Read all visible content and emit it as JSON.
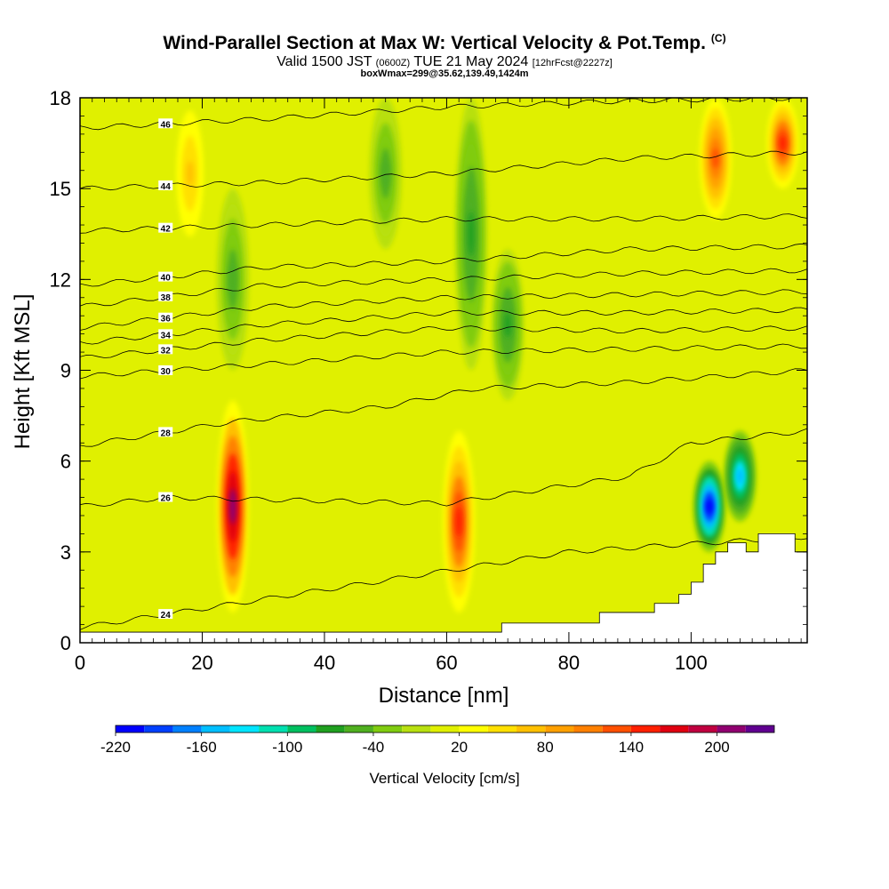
{
  "titles": {
    "main": "Wind-Parallel Section at Max W: Vertical Velocity & Pot.Temp.",
    "main_tag": "(C)",
    "sub_left": "Valid 1500 JST",
    "sub_small1": "(0600Z)",
    "sub_mid": "TUE 21 May 2024",
    "sub_small2": "[12hrFcst@2227z]",
    "info": "boxWmax=299@35.62,139.49,1424m"
  },
  "chart_data": {
    "type": "heatmap",
    "xlabel": "Distance [nm]",
    "ylabel": "Height [Kft MSL]",
    "xlim": [
      0,
      119
    ],
    "ylim": [
      0,
      18
    ],
    "x_ticks": [
      0,
      20,
      40,
      60,
      80,
      100
    ],
    "y_ticks": [
      0,
      3,
      6,
      9,
      12,
      15,
      18
    ],
    "colorbar": {
      "label": "Vertical Velocity [cm/s]",
      "levels": [
        -220,
        -200,
        -180,
        -160,
        -140,
        -120,
        -100,
        -80,
        -60,
        -40,
        -20,
        0,
        20,
        40,
        60,
        80,
        100,
        120,
        140,
        160,
        180,
        200,
        220
      ],
      "tick_labels": [
        "-220",
        "-160",
        "-100",
        "-40",
        "20",
        "80",
        "140",
        "200"
      ],
      "colors": [
        "#0000ff",
        "#0040ff",
        "#0080ff",
        "#00bfff",
        "#00e5ff",
        "#00e0b0",
        "#00c060",
        "#20a020",
        "#50b020",
        "#80cc10",
        "#b8e010",
        "#e0f000",
        "#ffff00",
        "#ffe000",
        "#ffc000",
        "#ffa000",
        "#ff8000",
        "#ff5000",
        "#ff2000",
        "#e00010",
        "#c00040",
        "#900070",
        "#600090"
      ]
    },
    "vertical_velocity_features": [
      {
        "x": 25,
        "y_top": 8,
        "y_bottom": 1,
        "peak": 210,
        "kind": "updraft"
      },
      {
        "x": 62,
        "y_top": 7,
        "y_bottom": 1,
        "peak": 150,
        "kind": "updraft"
      },
      {
        "x": 103,
        "y_top": 6,
        "y_bottom": 3,
        "peak": -220,
        "kind": "downdraft"
      },
      {
        "x": 108,
        "y_top": 7,
        "y_bottom": 4,
        "peak": -150,
        "kind": "downdraft"
      },
      {
        "x": 50,
        "y_top": 18,
        "y_bottom": 13,
        "peak": -60,
        "kind": "downdraft"
      },
      {
        "x": 64,
        "y_top": 18,
        "y_bottom": 9,
        "peak": -70,
        "kind": "downdraft"
      },
      {
        "x": 70,
        "y_top": 13,
        "y_bottom": 8,
        "peak": -70,
        "kind": "downdraft"
      },
      {
        "x": 25,
        "y_top": 15,
        "y_bottom": 9,
        "peak": -50,
        "kind": "downdraft"
      },
      {
        "x": 104,
        "y_top": 18,
        "y_bottom": 14,
        "peak": 120,
        "kind": "updraft"
      },
      {
        "x": 115,
        "y_top": 18,
        "y_bottom": 15,
        "peak": 150,
        "kind": "updraft"
      },
      {
        "x": 18,
        "y_top": 18,
        "y_bottom": 13,
        "peak": 70,
        "kind": "updraft"
      }
    ],
    "theta_contours": [
      {
        "label": "24",
        "levels_y": [
          [
            0,
            0.5
          ],
          [
            80,
            3.0
          ],
          [
            95,
            3.2
          ],
          [
            119,
            3.5
          ]
        ]
      },
      {
        "label": "26",
        "levels_y": [
          [
            0,
            4.5
          ],
          [
            14,
            4.8
          ],
          [
            60,
            4.6
          ],
          [
            90,
            5.5
          ],
          [
            100,
            6.6
          ],
          [
            119,
            7.0
          ]
        ]
      },
      {
        "label": "28",
        "levels_y": [
          [
            0,
            6.5
          ],
          [
            25,
            7.3
          ],
          [
            50,
            7.8
          ],
          [
            65,
            8.4
          ],
          [
            90,
            8.6
          ],
          [
            119,
            9.0
          ]
        ]
      },
      {
        "label": "30",
        "levels_y": [
          [
            0,
            8.8
          ],
          [
            30,
            9.2
          ],
          [
            60,
            9.6
          ],
          [
            90,
            9.7
          ],
          [
            119,
            9.8
          ]
        ]
      },
      {
        "label": "32",
        "levels_y": [
          [
            0,
            9.4
          ],
          [
            30,
            10.0
          ],
          [
            60,
            10.4
          ],
          [
            90,
            10.3
          ],
          [
            119,
            10.4
          ]
        ]
      },
      {
        "label": "34",
        "levels_y": [
          [
            0,
            9.9
          ],
          [
            30,
            10.5
          ],
          [
            60,
            10.9
          ],
          [
            90,
            10.9
          ],
          [
            119,
            11.0
          ]
        ]
      },
      {
        "label": "36",
        "levels_y": [
          [
            0,
            10.4
          ],
          [
            30,
            11.1
          ],
          [
            60,
            11.4
          ],
          [
            90,
            11.5
          ],
          [
            119,
            11.6
          ]
        ]
      },
      {
        "label": "38",
        "levels_y": [
          [
            0,
            11.1
          ],
          [
            30,
            11.8
          ],
          [
            60,
            12.0
          ],
          [
            90,
            12.2
          ],
          [
            119,
            12.3
          ]
        ]
      },
      {
        "label": "40",
        "levels_y": [
          [
            0,
            11.8
          ],
          [
            30,
            12.4
          ],
          [
            60,
            12.6
          ],
          [
            90,
            13.0
          ],
          [
            119,
            13.1
          ]
        ]
      },
      {
        "label": "42",
        "levels_y": [
          [
            0,
            13.6
          ],
          [
            30,
            13.8
          ],
          [
            60,
            14.0
          ],
          [
            90,
            14.0
          ],
          [
            119,
            14.1
          ]
        ]
      },
      {
        "label": "44",
        "levels_y": [
          [
            0,
            15.0
          ],
          [
            30,
            15.2
          ],
          [
            60,
            15.5
          ],
          [
            90,
            16.0
          ],
          [
            119,
            16.2
          ]
        ]
      },
      {
        "label": "46",
        "levels_y": [
          [
            0,
            17.0
          ],
          [
            30,
            17.3
          ],
          [
            60,
            17.7
          ],
          [
            90,
            17.9
          ],
          [
            119,
            18.0
          ]
        ]
      }
    ],
    "terrain": [
      [
        0,
        0.35
      ],
      [
        68,
        0.35
      ],
      [
        69,
        0.65
      ],
      [
        80,
        0.65
      ],
      [
        84,
        0.65
      ],
      [
        85,
        1.0
      ],
      [
        89,
        1.0
      ],
      [
        92,
        1.0
      ],
      [
        94,
        1.3
      ],
      [
        98,
        1.6
      ],
      [
        100,
        2.0
      ],
      [
        102,
        2.6
      ],
      [
        104,
        3.0
      ],
      [
        106,
        3.3
      ],
      [
        108,
        3.3
      ],
      [
        109,
        3.0
      ],
      [
        111,
        3.6
      ],
      [
        116,
        3.6
      ],
      [
        117,
        3.0
      ],
      [
        119,
        3.0
      ]
    ]
  }
}
